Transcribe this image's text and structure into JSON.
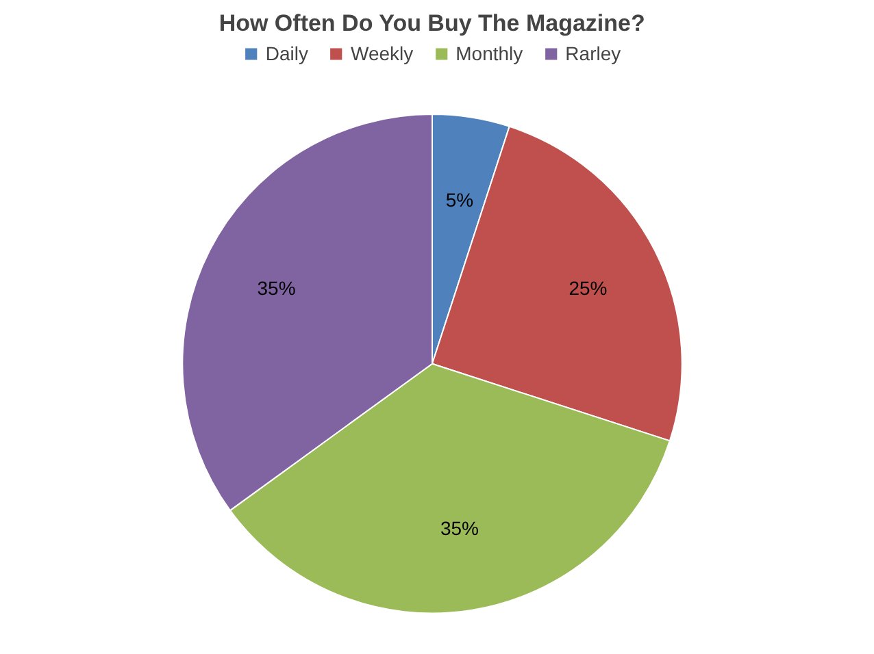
{
  "chart_data": {
    "type": "pie",
    "title": "How Often Do You Buy The Magazine?",
    "categories": [
      "Daily",
      "Weekly",
      "Monthly",
      "Rarley"
    ],
    "values": [
      5,
      25,
      35,
      35
    ],
    "colors": [
      "#4f81bd",
      "#c0504d",
      "#9bbb59",
      "#8064a2"
    ],
    "value_labels": [
      "5%",
      "25%",
      "35%",
      "35%"
    ],
    "legend": "top"
  }
}
